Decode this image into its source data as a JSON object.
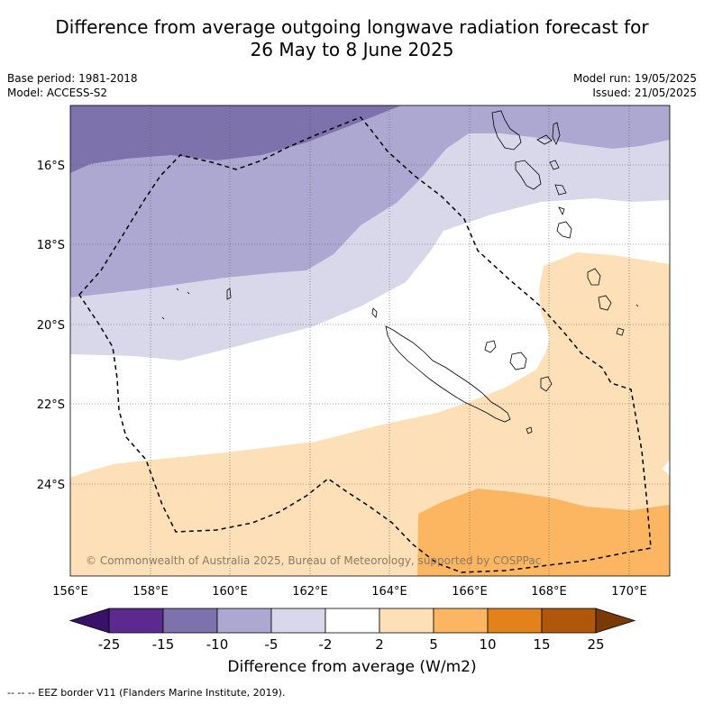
{
  "title": {
    "line1": "Difference from average outgoing longwave radiation forecast for",
    "line2": "26 May to 8 June 2025"
  },
  "meta_left": {
    "base_period": "Base period: 1981-2018",
    "model": "Model: ACCESS-S2"
  },
  "meta_right": {
    "model_run": "Model run: 19/05/2025",
    "issued": "Issued: 21/05/2025"
  },
  "map": {
    "lon_labels": [
      "156°E",
      "158°E",
      "160°E",
      "162°E",
      "164°E",
      "166°E",
      "168°E",
      "170°E"
    ],
    "lat_labels": [
      "16°S",
      "18°S",
      "20°S",
      "22°S",
      "24°S"
    ],
    "copyright": "© Commonwealth of Australia 2025, Bureau of Meteorology, supported by COSPPac",
    "colors": {
      "band_m10": "#7e72ad",
      "band_m5": "#ada8d1",
      "band_m2": "#d9d8ea",
      "band_neutral": "#ffffff",
      "band_p2": "#fde0b8",
      "band_p5": "#fcb662",
      "eez_border": "#000000",
      "coastline": "#000000"
    }
  },
  "colorbar": {
    "ticks": [
      "-25",
      "-15",
      "-10",
      "-5",
      "-2",
      "2",
      "5",
      "10",
      "15",
      "25"
    ],
    "colors": [
      "#3a1169",
      "#5b2a8f",
      "#7e72ad",
      "#ada8d1",
      "#d9d8ea",
      "#ffffff",
      "#fde0b8",
      "#fcb662",
      "#e1821a",
      "#b0570b",
      "#7a3a06"
    ],
    "label": "Difference from average (W/m2)"
  },
  "footnote": "--  --  -- EEZ border V11 (Flanders Marine Institute, 2019)."
}
